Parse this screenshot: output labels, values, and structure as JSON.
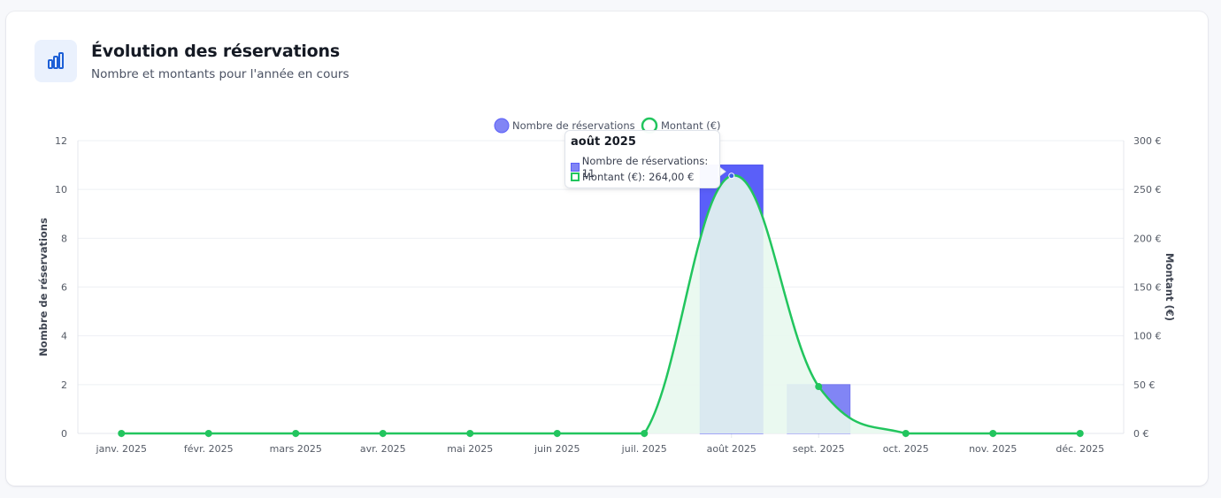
{
  "header": {
    "icon": "bar-chart-icon",
    "title": "Évolution des réservations",
    "subtitle": "Nombre et montants pour l'année en cours"
  },
  "chart_data": {
    "type": "bar",
    "categories": [
      "janv. 2025",
      "févr. 2025",
      "mars 2025",
      "avr. 2025",
      "mai 2025",
      "juin 2025",
      "juil. 2025",
      "août 2025",
      "sept. 2025",
      "oct. 2025",
      "nov. 2025",
      "déc. 2025"
    ],
    "series": [
      {
        "name": "Nombre de réservations",
        "type": "bar",
        "axis": "left",
        "color": "#5a5ff9",
        "color_light": "#8185f5",
        "values": [
          0,
          0,
          0,
          0,
          0,
          0,
          0,
          11,
          2,
          0,
          0,
          0
        ]
      },
      {
        "name": "Montant (€)",
        "type": "line",
        "axis": "right",
        "color": "#22c55e",
        "fill": "#e8f8ee",
        "values": [
          0,
          0,
          0,
          0,
          0,
          0,
          0,
          264,
          48,
          0,
          0,
          0
        ]
      }
    ],
    "ylabel": "Nombre de réservations",
    "y2label": "Montant (€)",
    "ylim": [
      0,
      12
    ],
    "y2lim": [
      0,
      300
    ],
    "yticks": [
      "0",
      "2",
      "4",
      "6",
      "8",
      "10",
      "12"
    ],
    "y2ticks": [
      "0 €",
      "50 €",
      "100 €",
      "150 €",
      "200 €",
      "250 €",
      "300 €"
    ],
    "grid": true,
    "legend": "top-center",
    "tooltip": {
      "title": "août 2025",
      "rows": [
        "Nombre de réservations: 11",
        "Montant (€): 264,00 €"
      ]
    }
  }
}
